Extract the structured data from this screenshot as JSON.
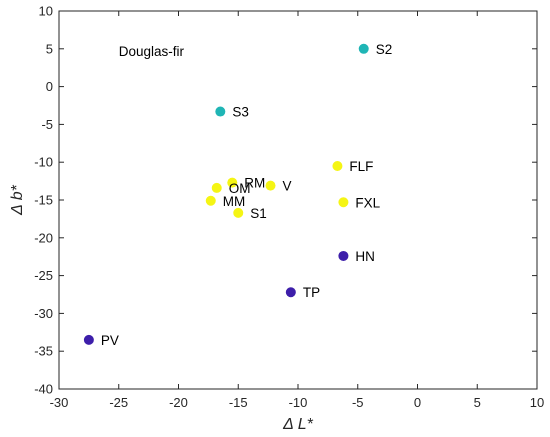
{
  "chart_data": {
    "type": "scatter",
    "title": "",
    "xlabel": "Δ L*",
    "ylabel": "Δ b*",
    "xlim": [
      -30,
      10
    ],
    "ylim": [
      -40,
      10
    ],
    "x_ticks": [
      -30,
      -25,
      -20,
      -15,
      -10,
      -5,
      0,
      5,
      10
    ],
    "y_ticks": [
      -40,
      -35,
      -30,
      -25,
      -20,
      -15,
      -10,
      -5,
      0,
      5,
      10
    ],
    "grid": false,
    "annotations": [
      {
        "text": "Douglas-fir",
        "x": -25,
        "y": 4.7
      }
    ],
    "points": [
      {
        "label": "S2",
        "x": -4.5,
        "y": 5.0,
        "color": "#1fb5b5"
      },
      {
        "label": "S3",
        "x": -16.5,
        "y": -3.3,
        "color": "#1fb5b5"
      },
      {
        "label": "FLF",
        "x": -6.7,
        "y": -10.5,
        "color": "#f5f514"
      },
      {
        "label": "RM",
        "x": -15.5,
        "y": -12.7,
        "color": "#f5f514"
      },
      {
        "label": "OM",
        "x": -16.8,
        "y": -13.4,
        "color": "#f5f514"
      },
      {
        "label": "V",
        "x": -12.3,
        "y": -13.1,
        "color": "#f5f514"
      },
      {
        "label": "MM",
        "x": -17.3,
        "y": -15.1,
        "color": "#f5f514"
      },
      {
        "label": "FXL",
        "x": -6.2,
        "y": -15.3,
        "color": "#f5f514"
      },
      {
        "label": "S1",
        "x": -15.0,
        "y": -16.7,
        "color": "#f5f514"
      },
      {
        "label": "HN",
        "x": -6.2,
        "y": -22.4,
        "color": "#3d1eaa"
      },
      {
        "label": "TP",
        "x": -10.6,
        "y": -27.2,
        "color": "#3d1eaa"
      },
      {
        "label": "PV",
        "x": -27.5,
        "y": -33.5,
        "color": "#3d1eaa"
      }
    ]
  }
}
